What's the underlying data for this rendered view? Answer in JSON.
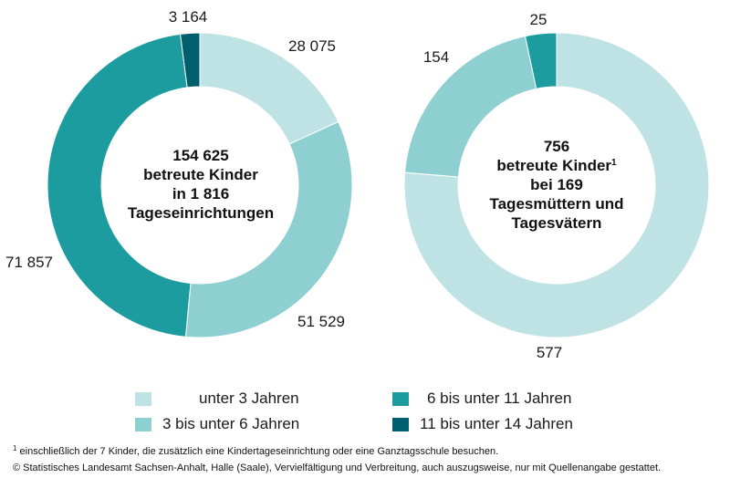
{
  "colors": {
    "under3": "#bfe3e5",
    "3to6": "#8ecfd1",
    "6to11": "#1d9c9f",
    "11to14": "#005e6e"
  },
  "chart_data": [
    {
      "type": "pie",
      "variant": "donut",
      "center_text": [
        "154 625",
        "betreute Kinder",
        "in 1 816",
        "Tageseinrichtungen"
      ],
      "slices": [
        {
          "key": "under3",
          "value": 28075,
          "label": "28 075"
        },
        {
          "key": "3to6",
          "value": 51529,
          "label": "51 529"
        },
        {
          "key": "6to11",
          "value": 71857,
          "label": "71 857"
        },
        {
          "key": "11to14",
          "value": 3164,
          "label": "3 164"
        }
      ]
    },
    {
      "type": "pie",
      "variant": "donut",
      "center_text": [
        "756",
        "betreute Kinder",
        "bei 169",
        "Tagesmüttern und",
        "Tagesvätern"
      ],
      "center_superscript": "1",
      "slices": [
        {
          "key": "under3",
          "value": 577,
          "label": "577"
        },
        {
          "key": "3to6",
          "value": 154,
          "label": "154"
        },
        {
          "key": "6to11",
          "value": 25,
          "label": "25"
        }
      ]
    }
  ],
  "legend": [
    {
      "key": "under3",
      "label": "unter 3 Jahren"
    },
    {
      "key": "3to6",
      "label": "3 bis unter 6 Jahren"
    },
    {
      "key": "6to11",
      "label": "6 bis unter 11 Jahren"
    },
    {
      "key": "11to14",
      "label": "11 bis unter 14 Jahren"
    }
  ],
  "footnotes": {
    "note_marker": "1",
    "note": " einschließlich der 7 Kinder, die zusätzlich eine Kindertageseinrichtung oder eine Ganztagsschule besuchen.",
    "copyright": "© Statistisches Landesamt Sachsen-Anhalt, Halle (Saale), Vervielfältigung und Verbreitung, auch auszugsweise, nur mit Quellenangabe gestattet."
  }
}
